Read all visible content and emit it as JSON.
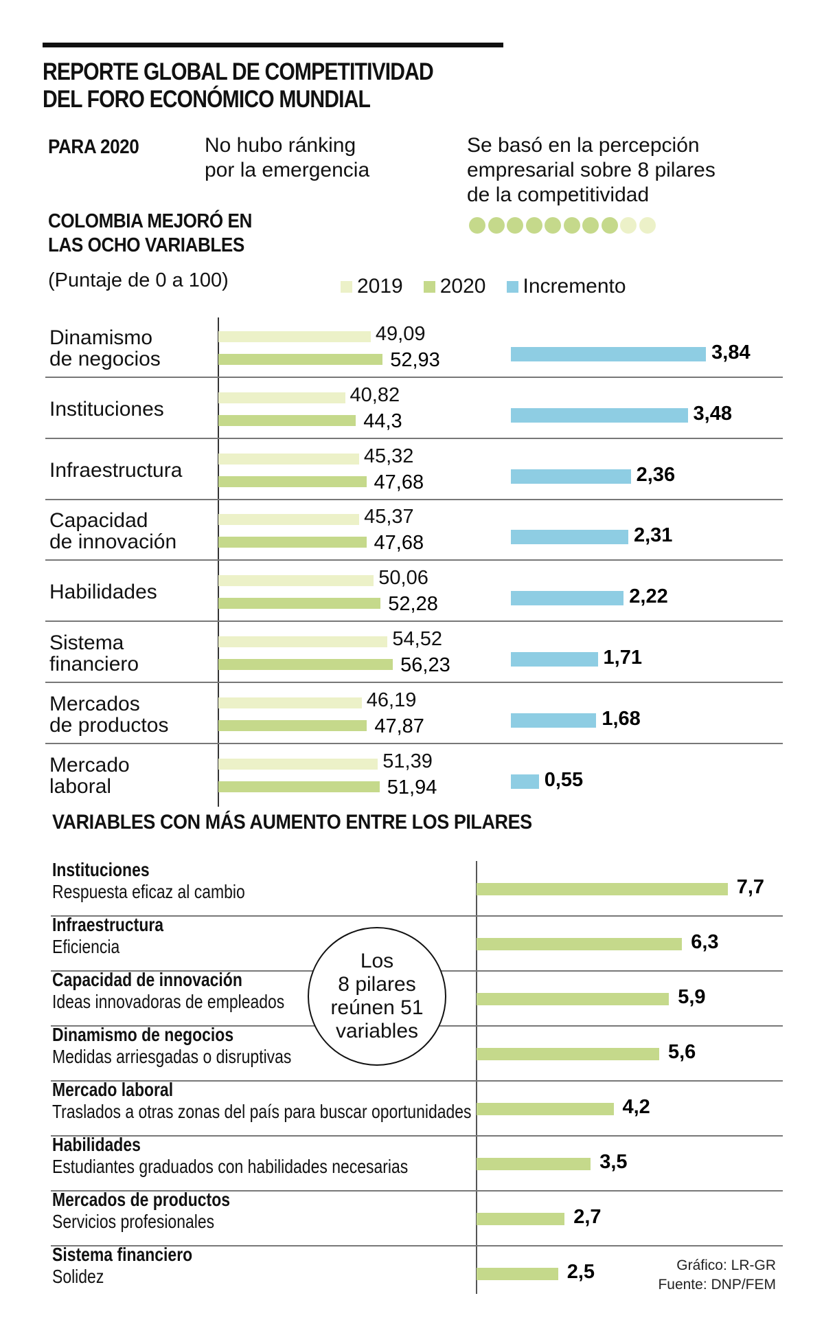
{
  "header": {
    "title_line1": "REPORTE GLOBAL DE COMPETITIVIDAD",
    "title_line2": "DEL FORO ECONÓMICO MUNDIAL",
    "para_label": "PARA 2020",
    "note1_line1": "No hubo ránking",
    "note1_line2": "por la emergencia",
    "note2_line1": "Se basó en la percepción",
    "note2_line2": "empresarial sobre 8 pilares",
    "note2_line3": "de la competitividad",
    "dots": {
      "filled": 8,
      "total": 10
    }
  },
  "colors": {
    "y2019": "#ecf1c8",
    "y2020": "#c5d98b",
    "increment": "#8ecde3",
    "dot_filled": "#c5d98b",
    "dot_light": "#ecf1c8",
    "text": "#111111",
    "rule": "#777777"
  },
  "chart_data": [
    {
      "type": "bar",
      "title": "COLOMBIA MEJORÓ EN LAS OCHO VARIABLES",
      "title_line1": "COLOMBIA MEJORÓ EN",
      "title_line2": "LAS OCHO VARIABLES",
      "subtitle": "(Puntaje de 0 a 100)",
      "legend": [
        "2019",
        "2020",
        "Incremento"
      ],
      "legend_position": "top",
      "categories": [
        [
          "Dinamismo",
          "de negocios"
        ],
        [
          "Instituciones"
        ],
        [
          "Infraestructura"
        ],
        [
          "Capacidad",
          "de innovación"
        ],
        [
          "Habilidades"
        ],
        [
          "Sistema",
          "financiero"
        ],
        [
          "Mercados",
          "de productos"
        ],
        [
          "Mercado",
          "laboral"
        ]
      ],
      "series": [
        {
          "name": "2019",
          "values": [
            49.09,
            40.82,
            45.32,
            45.37,
            50.06,
            54.52,
            46.19,
            51.39
          ],
          "labels": [
            "49,09",
            "40,82",
            "45,32",
            "45,37",
            "50,06",
            "54,52",
            "46,19",
            "51,39"
          ]
        },
        {
          "name": "2020",
          "values": [
            52.93,
            44.3,
            47.68,
            47.68,
            52.28,
            56.23,
            47.87,
            51.94
          ],
          "labels": [
            "52,93",
            "44,3",
            "47,68",
            "47,68",
            "52,28",
            "56,23",
            "47,87",
            "51,94"
          ]
        },
        {
          "name": "Incremento",
          "values": [
            3.84,
            3.48,
            2.36,
            2.31,
            2.22,
            1.71,
            1.68,
            0.55
          ],
          "labels": [
            "3,84",
            "3,48",
            "2,36",
            "2,31",
            "2,22",
            "1,71",
            "1,68",
            "0,55"
          ]
        }
      ],
      "xlim": [
        0,
        100
      ]
    },
    {
      "type": "bar",
      "title": "VARIABLES CON MÁS AUMENTO ENTRE LOS PILARES",
      "categories": [
        {
          "pillar": "Instituciones",
          "variable": "Respuesta eficaz al cambio"
        },
        {
          "pillar": "Infraestructura",
          "variable": "Eficiencia"
        },
        {
          "pillar": "Capacidad de innovación",
          "variable": "Ideas innovadoras de empleados"
        },
        {
          "pillar": "Dinamismo de negocios",
          "variable": "Medidas arriesgadas o disruptivas"
        },
        {
          "pillar": "Mercado laboral",
          "variable": "Traslados a otras zonas del país para buscar oportunidades"
        },
        {
          "pillar": "Habilidades",
          "variable": "Estudiantes graduados con habilidades necesarias"
        },
        {
          "pillar": "Mercados de productos",
          "variable": "Servicios profesionales"
        },
        {
          "pillar": "Sistema financiero",
          "variable": "Solidez"
        }
      ],
      "values": [
        7.7,
        6.3,
        5.9,
        5.6,
        4.2,
        3.5,
        2.7,
        2.5
      ],
      "labels": [
        "7,7",
        "6,3",
        "5,9",
        "5,6",
        "4,2",
        "3,5",
        "2,7",
        "2,5"
      ],
      "annotation": [
        "Los",
        "8 pilares",
        "reúnen 51",
        "variables"
      ]
    }
  ],
  "footer": {
    "credit": "Gráfico: LR-GR",
    "source": "Fuente: DNP/FEM"
  }
}
